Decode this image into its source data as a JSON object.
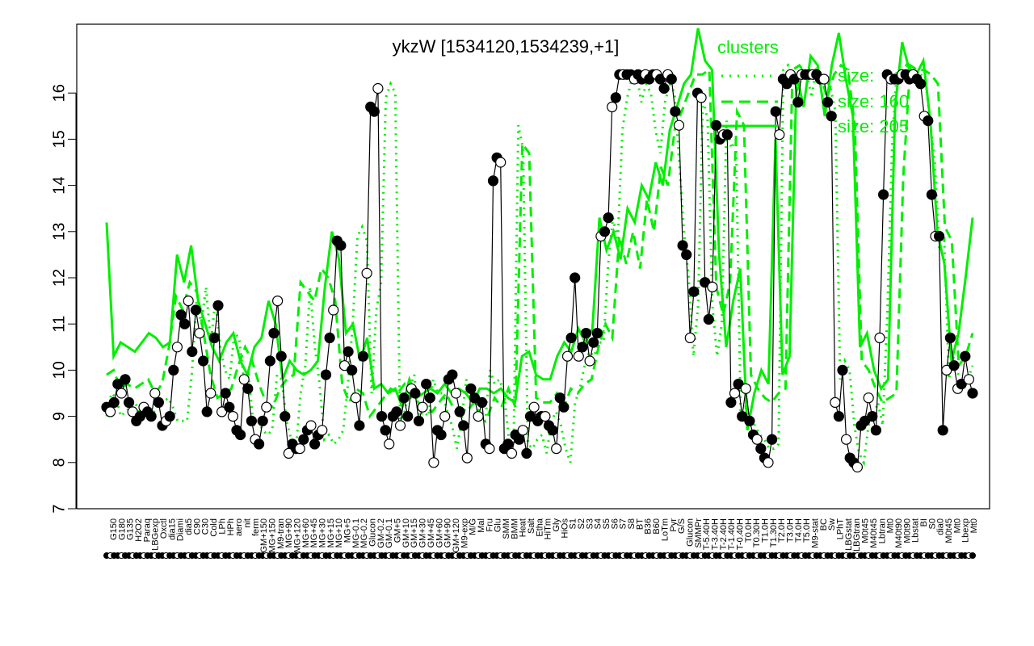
{
  "chart_data": {
    "type": "line",
    "title": "ykzW [1534120,1534239,+1]",
    "xlabel": "",
    "ylabel": "",
    "ylim": [
      7,
      16.6
    ],
    "yticks": [
      7,
      8,
      9,
      10,
      11,
      12,
      13,
      14,
      15,
      16
    ],
    "grid": false,
    "legend": {
      "title": "clusters",
      "placement": "top-right",
      "entries": [
        {
          "label": "size:",
          "style": "dotted"
        },
        {
          "label": "size: 160",
          "style": "dashed"
        },
        {
          "label": "size: 205",
          "style": "solid"
        }
      ]
    },
    "x_tick_labels": [
      "G150",
      "G180",
      "G135",
      "H2O2",
      "Paraq",
      "LBGexp",
      "Oxctl",
      "dia15",
      "Diami",
      "dia5",
      "C90",
      "C30",
      "Cold",
      "LPh",
      "HPh",
      "aero",
      "nit",
      "ferm",
      "GM+150",
      "MG+150",
      "M9-tran",
      "MG+90",
      "MG+120",
      "MG+60",
      "MG+45",
      "MG+30",
      "MG+15",
      "MG+10",
      "MG+5",
      "MG-0.1",
      "MG-0.2",
      "Glucon",
      "GM-0.2",
      "GM-0.1",
      "GM+5",
      "GM+10",
      "GM+15",
      "GM+30",
      "GM+45",
      "GM+60",
      "GM+90",
      "GM+120",
      "M9-exp",
      "M/G",
      "Mal",
      "Fru",
      "Glu",
      "SMM",
      "BMM",
      "Heat",
      "Salt",
      "Etha",
      "HiTm",
      "Gly",
      "HiOs",
      "S1",
      "S2",
      "S3",
      "S4",
      "S5",
      "S6",
      "S7",
      "S8",
      "BT",
      "B36",
      "B60",
      "LoTm",
      "Pyr",
      "G/S",
      "Glucon",
      "SMMPr",
      "T-5.40H",
      "T-3.40H",
      "T-2.40H",
      "T-1.40H",
      "T-0.40H",
      "T0.0H",
      "T0.30H",
      "T1.0H",
      "T1.30H",
      "T2.0H",
      "T3.0H",
      "T4.0H",
      "T5.0H",
      "M9-stat",
      "BC",
      "Sw",
      "LPhT",
      "LBGstat",
      "LBGtran",
      "M0t45",
      "M40t45",
      "Lbtran",
      "Mt0",
      "M40t90",
      "M0t90",
      "Lbstat",
      "BI",
      "S0",
      "dia0",
      "M0t45",
      "Mt0",
      "Lbexp",
      "Mt0"
    ],
    "series": [
      {
        "name": "",
        "style": "black-line-with-markers",
        "y": [
          9.2,
          9.1,
          9.3,
          9.7,
          9.5,
          9.8,
          9.3,
          9.1,
          8.9,
          9.0,
          9.2,
          9.1,
          9.0,
          9.5,
          9.3,
          8.8,
          8.9,
          9.0,
          10.0,
          10.5,
          11.2,
          11.0,
          11.5,
          10.4,
          11.3,
          10.8,
          10.2,
          9.1,
          9.5,
          10.7,
          11.4,
          9.1,
          9.5,
          9.2,
          9.0,
          8.7,
          8.6,
          9.8,
          9.6,
          8.9,
          8.5,
          8.4,
          8.9,
          9.2,
          10.2,
          10.8,
          11.5,
          10.3,
          9.0,
          8.2,
          8.4,
          8.3,
          8.3,
          8.5,
          8.7,
          8.8,
          8.4,
          8.6,
          8.7,
          9.9,
          10.7,
          11.3,
          12.8,
          12.7,
          10.1,
          10.4,
          10.0,
          9.4,
          8.8,
          10.3,
          12.1,
          15.7,
          15.6,
          16.1,
          9.0,
          8.7,
          8.4,
          9.0,
          9.1,
          8.8,
          9.4,
          9.0,
          9.6,
          9.5,
          8.9,
          9.2,
          9.7,
          9.4,
          8.0,
          8.7,
          8.6,
          9.0,
          9.8,
          9.9,
          9.5,
          9.1,
          8.8,
          8.1,
          9.6,
          9.4,
          9.0,
          9.3,
          8.4,
          8.3,
          14.1,
          14.6,
          14.5,
          8.3,
          8.4,
          8.2,
          8.6,
          8.5,
          8.7,
          8.2,
          9.0,
          9.2,
          8.9,
          9.0,
          9.0,
          8.8,
          8.7,
          8.3,
          9.4,
          9.2,
          10.3,
          10.7,
          12.0,
          10.3,
          10.5,
          10.8,
          10.2,
          10.6,
          10.8,
          12.9,
          13.0,
          13.3,
          15.7,
          15.9,
          16.4,
          16.4,
          16.4,
          16.4,
          16.3,
          16.4,
          16.3,
          16.4,
          16.3,
          16.4,
          16.4,
          16.3,
          16.1,
          16.4,
          16.3,
          15.6,
          15.3,
          12.7,
          12.5,
          10.7,
          11.7,
          16.0,
          15.9,
          11.9,
          11.1,
          11.8,
          15.3,
          15.0,
          15.1,
          15.1,
          9.3,
          9.5,
          9.7,
          9.0,
          9.6,
          8.9,
          8.6,
          8.5,
          8.3,
          8.1,
          8.0,
          8.5,
          15.6,
          15.1,
          16.3,
          16.2,
          16.4,
          16.3,
          15.8,
          16.4,
          16.4,
          16.4,
          16.4,
          16.4,
          16.3,
          16.3,
          15.8,
          15.5,
          9.3,
          9.0,
          10.0,
          8.5,
          8.1,
          8.0,
          7.9,
          8.8,
          8.9,
          9.4,
          9.0,
          8.7,
          10.7,
          13.8,
          16.4,
          16.3,
          16.3,
          16.3,
          16.4,
          16.4,
          16.3,
          16.4,
          16.3,
          16.2,
          15.5,
          15.4,
          13.8,
          12.9,
          12.9,
          8.7,
          10.0,
          10.7,
          10.1,
          9.6,
          9.7,
          10.3,
          9.8,
          9.5
        ]
      },
      {
        "name": "",
        "style": "green-dotted",
        "y": [
          9.0,
          9.5,
          9.4,
          9.0,
          9.1,
          9.2,
          9.3,
          9.1,
          9.0,
          9.0,
          9.1,
          9.3,
          9.3,
          9.4,
          9.2,
          8.9,
          8.9,
          8.9,
          9.9,
          11.5,
          11.0,
          11.8,
          10.6,
          11.5,
          10.5,
          10.0,
          9.8,
          10.8,
          10.7,
          9.8,
          9.9,
          8.8,
          8.9,
          8.7,
          8.6,
          8.7,
          9.9,
          9.8,
          8.9,
          8.5,
          8.3,
          9.5,
          10.1,
          11.8,
          10.5,
          9.7,
          8.5,
          8.6,
          8.4,
          8.5,
          8.7,
          9.7,
          11.0,
          12.9,
          13.1,
          12.8,
          9.5,
          11.3,
          11.9,
          15.9,
          16.2,
          16.0,
          8.9,
          9.1,
          9.6,
          9.9,
          9.0,
          9.1,
          9.0,
          9.8,
          9.5,
          9.5,
          9.1,
          8.8,
          8.3,
          8.9,
          9.8,
          9.5,
          9.3,
          9.0,
          8.9,
          10.0,
          9.7,
          9.8,
          9.5,
          8.5,
          8.4,
          15.3,
          14.8,
          8.4,
          8.3,
          8.5,
          8.6,
          8.2,
          8.9,
          9.1,
          8.8,
          8.3,
          8.0,
          9.3,
          9.6,
          10.1,
          10.4,
          10.3,
          10.6,
          10.6,
          12.3,
          13.3,
          12.8,
          15.2,
          15.9,
          16.3,
          16.4,
          15.8,
          16.2,
          16.0,
          15.2,
          14.7,
          15.8,
          16.2,
          16.0,
          14.5,
          13.0,
          12.0,
          10.3,
          11.4,
          15.9,
          15.4,
          11.4,
          10.3,
          11.0,
          15.4,
          14.8,
          15.0,
          8.9,
          9.2,
          9.0,
          8.8,
          8.6,
          8.5,
          8.3,
          8.3,
          8.4,
          16.5,
          16.6,
          16.3,
          16.1,
          16.5,
          16.4,
          15.9,
          16.6,
          16.4,
          16.3,
          16.1,
          15.6,
          9.8,
          10.2,
          10.0,
          8.8,
          8.2,
          8.0,
          8.8,
          9.0,
          9.3,
          8.8,
          11.3,
          14.9,
          16.5,
          16.4,
          16.6,
          16.5,
          16.4,
          16.4,
          16.3,
          15.4,
          14.5,
          12.6,
          12.8,
          9.8,
          10.3,
          9.9,
          9.7,
          9.8,
          10.1
        ]
      },
      {
        "name": "",
        "style": "green-dashed",
        "y": [
          9.9,
          10.0,
          9.6,
          9.7,
          9.6,
          9.7,
          9.8,
          9.5,
          9.7,
          10.5,
          11.6,
          11.3,
          11.9,
          11.7,
          10.8,
          9.9,
          9.4,
          9.5,
          9.6,
          10.1,
          10.5,
          10.2,
          9.7,
          9.3,
          9.2,
          9.6,
          9.8,
          9.9,
          11.9,
          11.7,
          11.5,
          12.2,
          12.0,
          11.5,
          9.7,
          9.3,
          9.6,
          9.5,
          9.0,
          9.2,
          9.4,
          9.6,
          9.5,
          9.7,
          9.4,
          9.3,
          9.2,
          9.1,
          9.3,
          9.5,
          9.2,
          9.2,
          9.1,
          9.3,
          9.0,
          9.0,
          9.4,
          9.2,
          9.6,
          9.2,
          14.9,
          14.7,
          9.4,
          9.3,
          9.3,
          9.5,
          9.2,
          9.6,
          9.5,
          9.7,
          9.8,
          10.5,
          11.0,
          10.7,
          12.9,
          12.3,
          13.0,
          12.2,
          13.7,
          13.0,
          14.4,
          14.0,
          15.2,
          15.6,
          16.0,
          16.4,
          16.4,
          16.5,
          11.8,
          11.2,
          11.9,
          15.6,
          15.3,
          9.9,
          9.6,
          9.4,
          9.3,
          9.5,
          9.6,
          16.5,
          16.6,
          16.4,
          16.5,
          16.4,
          15.9,
          16.4,
          16.6,
          16.5,
          15.3,
          10.2,
          10.0,
          9.6,
          9.3,
          9.4,
          9.5,
          14.2,
          16.6,
          16.5,
          16.5,
          16.4,
          16.2,
          13.1,
          12.8,
          10.1,
          10.3,
          10.8
        ]
      },
      {
        "name": "",
        "style": "green-solid",
        "y": [
          13.2,
          10.3,
          10.6,
          10.5,
          10.4,
          10.6,
          10.8,
          10.7,
          10.5,
          10.6,
          12.5,
          11.9,
          12.7,
          11.5,
          11.0,
          10.5,
          10.2,
          10.6,
          10.8,
          10.2,
          9.9,
          10.5,
          10.7,
          11.5,
          11.0,
          9.8,
          10.2,
          10.0,
          9.9,
          10.0,
          10.2,
          11.8,
          13.0,
          12.4,
          10.8,
          11.0,
          10.2,
          10.7,
          9.6,
          9.7,
          9.5,
          9.6,
          9.2,
          9.8,
          9.4,
          9.5,
          9.6,
          9.5,
          9.7,
          9.5,
          9.6,
          9.5,
          9.3,
          9.6,
          9.6,
          9.5,
          9.6,
          9.4,
          9.3,
          10.3,
          10.4,
          9.9,
          9.8,
          9.8,
          10.3,
          10.6,
          10.4,
          10.9,
          10.6,
          10.9,
          13.3,
          12.6,
          13.0,
          12.4,
          13.5,
          13.2,
          14.0,
          13.7,
          14.5,
          14.0,
          15.2,
          15.7,
          16.2,
          16.4,
          17.4,
          16.7,
          16.5,
          12.5,
          10.5,
          11.5,
          12.2,
          8.7,
          9.5,
          10.0,
          9.7,
          15.0,
          9.9,
          10.3,
          16.4,
          15.7,
          16.8,
          16.6,
          15.5,
          16.6,
          17.3,
          16.3,
          15.5,
          10.5,
          10.8,
          10.0,
          9.6,
          9.8,
          15.7,
          17.1,
          16.5,
          16.4,
          16.7,
          15.4,
          13.0,
          12.3,
          10.2,
          10.8,
          12.0,
          13.3
        ]
      }
    ]
  }
}
